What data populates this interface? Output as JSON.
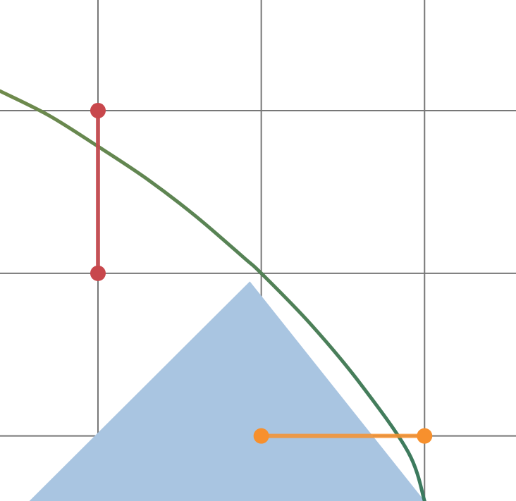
{
  "colors": {
    "background": "#ffffff",
    "grid": "#777777",
    "region_fill": "#a9c5e1",
    "curve_start": "#6f8a4c",
    "curve_end": "#3a7a5f",
    "red_segment": "#c8474c",
    "orange_segment": "#f7902d"
  },
  "graph": {
    "x_range": [
      -0.6,
      2.56
    ],
    "y_range": [
      -0.4,
      2.68
    ],
    "grid_x": [
      0,
      1,
      2
    ],
    "grid_y": [
      0,
      1,
      2
    ],
    "curve": {
      "label": "",
      "x": [
        -0.6,
        -0.3,
        0,
        0.3,
        0.6,
        0.9,
        1.0,
        1.3,
        1.6,
        1.9,
        2.0
      ],
      "y": [
        2.12,
        1.97,
        1.78,
        1.58,
        1.35,
        1.09,
        1.0,
        0.69,
        0.33,
        -0.1,
        -0.4
      ]
    },
    "region": {
      "label": "",
      "vertices": [
        [
          -0.42,
          -0.4
        ],
        [
          0.93,
          0.95
        ],
        [
          2.0,
          -0.4
        ]
      ]
    },
    "segments": [
      {
        "name": "red-segment",
        "color_key": "red_segment",
        "from": [
          0,
          2
        ],
        "to": [
          0,
          1
        ]
      },
      {
        "name": "orange-segment",
        "color_key": "orange_segment",
        "from": [
          1,
          0
        ],
        "to": [
          2,
          0
        ]
      }
    ]
  }
}
